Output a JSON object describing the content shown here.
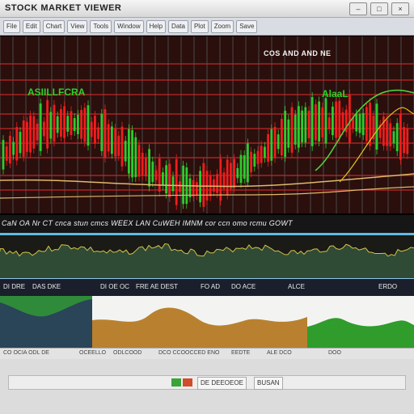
{
  "window": {
    "title": "STOCK MARKET VIEWER",
    "buttons": [
      "–",
      "□",
      "×"
    ]
  },
  "toolbar": {
    "items": [
      "File",
      "Edit",
      "Chart",
      "View",
      "Tools",
      "Window",
      "Help",
      "Data",
      "Plot",
      "Zoom",
      "Save"
    ]
  },
  "main_chart": {
    "title": "COS AND AND NE",
    "series_left_label": "ASIILLFCRA",
    "series_right_label": "AlaaL",
    "colors": {
      "background": "#2a0f0c",
      "grid_horizontal": "#c0282a",
      "grid_vertical": "#4a4a4a",
      "upper_line": "#e1c21d",
      "lower_line": "#e3b86a",
      "green_line": "#54cf3c",
      "candle_up": "#2ccc2d",
      "candle_down": "#ef1d1d"
    }
  },
  "stats_strip": {
    "text": "CaN OA Nr CT cnca stun cmcs WEEX LAN CuWEH IMNM cor ccn omo rcmu GOWT"
  },
  "oscillator": {
    "top_border_color": "#61b9e6"
  },
  "pane_header": {
    "labels": [
      "DI DRE",
      "DAS DKE",
      "DI OE OC",
      "FRE AE DEST",
      "FO AD",
      "DO ACE",
      "ALCE",
      "ERDO"
    ]
  },
  "lower_panes": [
    {
      "name": "dark-blue-pane",
      "bg": "#2a4458",
      "fill": "#2f8b3a"
    },
    {
      "name": "orange-pane",
      "bg": "#f3f4f2",
      "fill": "#b9812f"
    },
    {
      "name": "green-pane",
      "bg": "#f3f4f2",
      "fill": "#2f9c2c"
    }
  ],
  "status_row": {
    "labels": [
      "CO OCIA ODL DE",
      "OCEELLO",
      "ODLCOOD",
      "DCO CCOOCCED ENO",
      "EEDTE",
      "ALE DCO",
      "DOO"
    ]
  },
  "bottom": {
    "tabs": [
      "",
      "DE DEEOEOE",
      "BUSAN"
    ]
  }
}
